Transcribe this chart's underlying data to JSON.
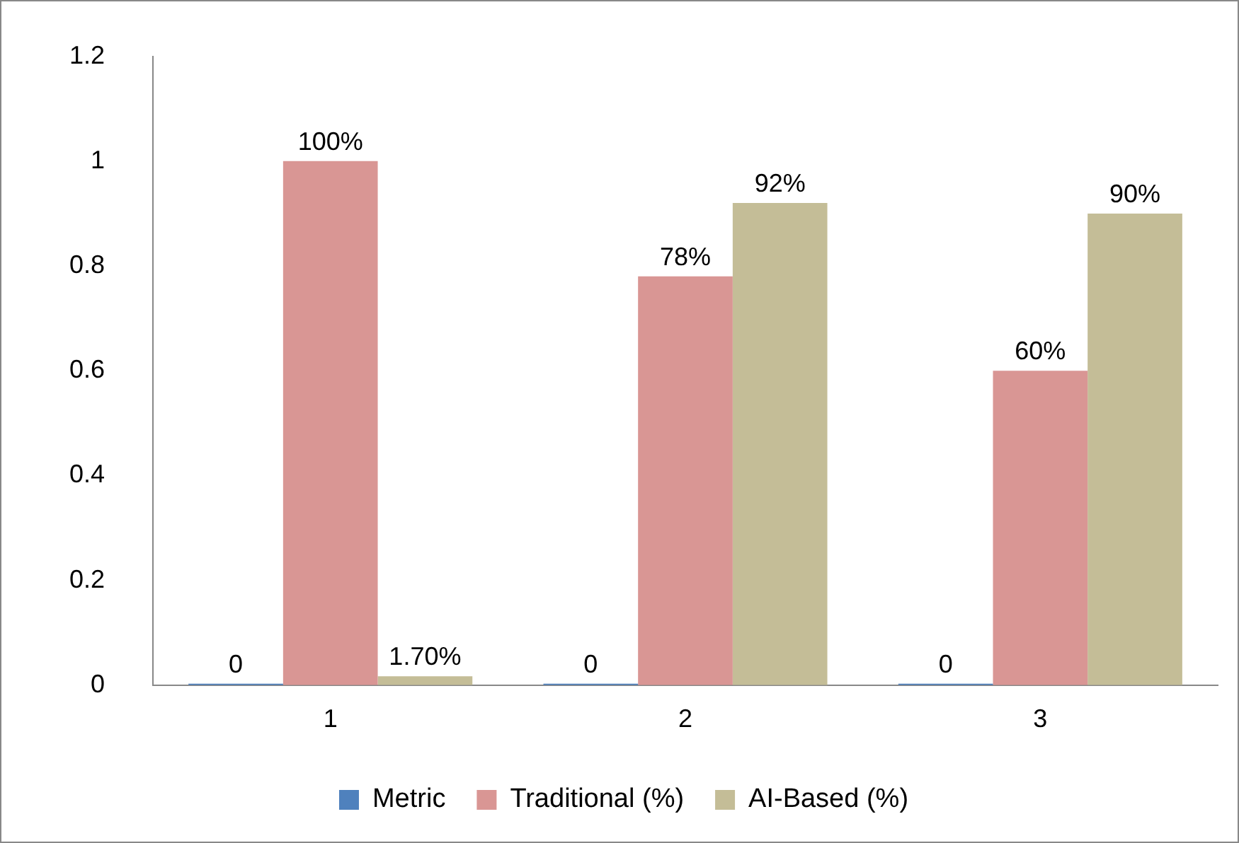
{
  "chart_data": {
    "type": "bar",
    "categories": [
      "1",
      "2",
      "3"
    ],
    "series": [
      {
        "name": "Metric",
        "color": "#4f81bd",
        "values": [
          0,
          0,
          0
        ],
        "value_labels": [
          "0",
          "0",
          "0"
        ]
      },
      {
        "name": "Traditional (%)",
        "color": "#d99694",
        "values": [
          1,
          0.78,
          0.6
        ],
        "value_labels": [
          "100%",
          "78%",
          "60%"
        ]
      },
      {
        "name": "AI-Based (%)",
        "color": "#c4bd97",
        "values": [
          0.017,
          0.92,
          0.9
        ],
        "value_labels": [
          "1.70%",
          "92%",
          "90%"
        ]
      }
    ],
    "ylim": [
      0,
      1.2
    ],
    "yticks": [
      0,
      0.2,
      0.4,
      0.6,
      0.8,
      1,
      1.2
    ],
    "grid": false,
    "legend": "bottom"
  }
}
